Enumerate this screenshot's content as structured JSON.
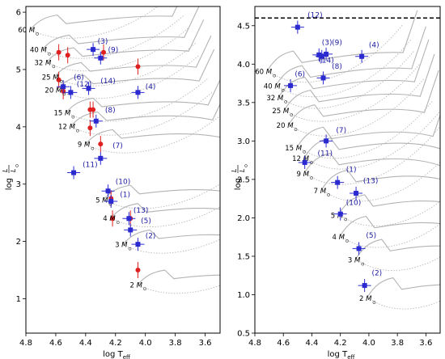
{
  "figure": {
    "description": "Two-panel Hertzsprung-Russell diagram with evolutionary tracks, observed stars and models"
  },
  "chart_data": [
    {
      "type": "scatter",
      "panel": "left",
      "xlabel": "log T",
      "xlabel_sub": "eff",
      "ylabel_num": "L",
      "ylabel_den": "L",
      "ylabel_prefix": "log",
      "xlim": [
        4.8,
        3.5
      ],
      "ylim": [
        0.4,
        6.1
      ],
      "xticks": [
        {
          "value": 4.8,
          "label": "4.8"
        },
        {
          "value": 4.6,
          "label": "4.6"
        },
        {
          "value": 4.4,
          "label": "4.4"
        },
        {
          "value": 4.2,
          "label": "4.2"
        },
        {
          "value": 4.0,
          "label": "4.0"
        },
        {
          "value": 3.8,
          "label": "3.8"
        },
        {
          "value": 3.6,
          "label": "3.6"
        }
      ],
      "yticks": [
        {
          "value": 1,
          "label": "1"
        },
        {
          "value": 2,
          "label": "2"
        },
        {
          "value": 3,
          "label": "3"
        },
        {
          "value": 4,
          "label": "4"
        },
        {
          "value": 5,
          "label": "5"
        },
        {
          "value": 6,
          "label": "6"
        }
      ],
      "mass_labels": [
        {
          "text": "60",
          "x": 4.74,
          "y": 5.65
        },
        {
          "text": "40",
          "x": 4.66,
          "y": 5.3
        },
        {
          "text": "32",
          "x": 4.63,
          "y": 5.08
        },
        {
          "text": "25",
          "x": 4.58,
          "y": 4.82
        },
        {
          "text": "20",
          "x": 4.56,
          "y": 4.6
        },
        {
          "text": "15",
          "x": 4.5,
          "y": 4.2
        },
        {
          "text": "12",
          "x": 4.47,
          "y": 3.96
        },
        {
          "text": "9",
          "x": 4.37,
          "y": 3.65
        },
        {
          "text": "5",
          "x": 4.25,
          "y": 2.68
        },
        {
          "text": "4",
          "x": 4.2,
          "y": 2.36
        },
        {
          "text": "3",
          "x": 4.12,
          "y": 1.9
        },
        {
          "text": "2",
          "x": 4.02,
          "y": 1.2
        }
      ],
      "model_stars": [
        {
          "label": "(3)",
          "x": 4.35,
          "y": 5.35,
          "lx": 4.32,
          "ly": 5.45
        },
        {
          "label": "(9)",
          "x": 4.3,
          "y": 5.2,
          "lx": 4.25,
          "ly": 5.3
        },
        {
          "label": "(6)",
          "x": 4.55,
          "y": 4.7,
          "lx": 4.48,
          "ly": 4.82
        },
        {
          "label": "(12)",
          "x": 4.38,
          "y": 4.67,
          "lx": 4.46,
          "ly": 4.7
        },
        {
          "label": "(14)",
          "x": 4.5,
          "y": 4.6,
          "lx": 4.3,
          "ly": 4.76
        },
        {
          "label": "(4)",
          "x": 4.05,
          "y": 4.6,
          "lx": 4.0,
          "ly": 4.66
        },
        {
          "label": "(8)",
          "x": 4.33,
          "y": 4.1,
          "lx": 4.27,
          "ly": 4.25
        },
        {
          "label": "(7)",
          "x": 4.3,
          "y": 3.45,
          "lx": 4.22,
          "ly": 3.63
        },
        {
          "label": "(11)",
          "x": 4.48,
          "y": 3.2,
          "lx": 4.42,
          "ly": 3.3
        },
        {
          "label": "(10)",
          "x": 4.25,
          "y": 2.88,
          "lx": 4.2,
          "ly": 3.0
        },
        {
          "label": "(1)",
          "x": 4.23,
          "y": 2.7,
          "lx": 4.17,
          "ly": 2.78
        },
        {
          "label": "(13)",
          "x": 4.11,
          "y": 2.4,
          "lx": 4.08,
          "ly": 2.5
        },
        {
          "label": "(5)",
          "x": 4.1,
          "y": 2.2,
          "lx": 4.03,
          "ly": 2.32
        },
        {
          "label": "(2)",
          "x": 4.05,
          "y": 1.95,
          "lx": 4.0,
          "ly": 2.06
        }
      ],
      "observed_stars": [
        {
          "x": 4.58,
          "y": 5.3
        },
        {
          "x": 4.52,
          "y": 5.25
        },
        {
          "x": 4.28,
          "y": 5.3
        },
        {
          "x": 4.58,
          "y": 4.82
        },
        {
          "x": 4.05,
          "y": 5.05
        },
        {
          "x": 4.55,
          "y": 4.62
        },
        {
          "x": 4.37,
          "y": 4.3
        },
        {
          "x": 4.35,
          "y": 4.3
        },
        {
          "x": 4.37,
          "y": 3.98
        },
        {
          "x": 4.3,
          "y": 3.7
        },
        {
          "x": 4.23,
          "y": 2.75
        },
        {
          "x": 4.22,
          "y": 2.4
        },
        {
          "x": 4.1,
          "y": 2.4
        },
        {
          "x": 4.05,
          "y": 1.5
        }
      ]
    },
    {
      "type": "scatter",
      "panel": "right",
      "xlabel": "log T",
      "xlabel_sub": "eff",
      "ylabel_num": "L",
      "ylabel_den": "L",
      "ylabel_prefix": "log",
      "xlim": [
        4.8,
        3.5
      ],
      "ylim": [
        0.5,
        4.75
      ],
      "eddington_limit": 4.6,
      "xticks": [
        {
          "value": 4.8,
          "label": "4.8"
        },
        {
          "value": 4.6,
          "label": "4.6"
        },
        {
          "value": 4.4,
          "label": "4.4"
        },
        {
          "value": 4.2,
          "label": "4.2"
        },
        {
          "value": 4.0,
          "label": "4.0"
        },
        {
          "value": 3.8,
          "label": "3.8"
        },
        {
          "value": 3.6,
          "label": "3.6"
        }
      ],
      "yticks": [
        {
          "value": 0.5,
          "label": "0.5"
        },
        {
          "value": 1.0,
          "label": "1.0"
        },
        {
          "value": 1.5,
          "label": "1.5"
        },
        {
          "value": 2.0,
          "label": "2.0"
        },
        {
          "value": 2.5,
          "label": "2.5"
        },
        {
          "value": 3.0,
          "label": "3.0"
        },
        {
          "value": 3.5,
          "label": "3.5"
        },
        {
          "value": 4.0,
          "label": "4.0"
        },
        {
          "value": 4.5,
          "label": "4.5"
        }
      ],
      "mass_labels": [
        {
          "text": "60",
          "x": 4.68,
          "y": 3.87
        },
        {
          "text": "40",
          "x": 4.62,
          "y": 3.68
        },
        {
          "text": "32",
          "x": 4.6,
          "y": 3.53
        },
        {
          "text": "25",
          "x": 4.56,
          "y": 3.36
        },
        {
          "text": "20",
          "x": 4.53,
          "y": 3.17
        },
        {
          "text": "15",
          "x": 4.47,
          "y": 2.88
        },
        {
          "text": "12",
          "x": 4.42,
          "y": 2.74
        },
        {
          "text": "9",
          "x": 4.42,
          "y": 2.54
        },
        {
          "text": "7",
          "x": 4.3,
          "y": 2.32
        },
        {
          "text": "5",
          "x": 4.18,
          "y": 2.0
        },
        {
          "text": "4",
          "x": 4.17,
          "y": 1.72
        },
        {
          "text": "3",
          "x": 4.06,
          "y": 1.42
        },
        {
          "text": "2",
          "x": 3.98,
          "y": 0.92
        }
      ],
      "model_stars": [
        {
          "label": "(12)",
          "x": 4.5,
          "y": 4.48,
          "lx": 4.43,
          "ly": 4.61
        },
        {
          "label": "(3)",
          "x": 4.35,
          "y": 4.12,
          "lx": 4.33,
          "ly": 4.25
        },
        {
          "label": "(9)",
          "x": 4.3,
          "y": 4.13,
          "lx": 4.26,
          "ly": 4.25
        },
        {
          "label": "(14)",
          "x": 4.33,
          "y": 4.1,
          "lx": 4.35,
          "ly": 4.02
        },
        {
          "label": "(4)",
          "x": 4.05,
          "y": 4.1,
          "lx": 4.0,
          "ly": 4.22
        },
        {
          "label": "(8)",
          "x": 4.32,
          "y": 3.82,
          "lx": 4.26,
          "ly": 3.94
        },
        {
          "label": "(6)",
          "x": 4.55,
          "y": 3.72,
          "lx": 4.52,
          "ly": 3.84
        },
        {
          "label": "(7)",
          "x": 4.3,
          "y": 3.0,
          "lx": 4.23,
          "ly": 3.11
        },
        {
          "label": "(11)",
          "x": 4.45,
          "y": 2.72,
          "lx": 4.36,
          "ly": 2.81
        },
        {
          "label": "(1)",
          "x": 4.22,
          "y": 2.46,
          "lx": 4.16,
          "ly": 2.6
        },
        {
          "label": "(13)",
          "x": 4.09,
          "y": 2.32,
          "lx": 4.04,
          "ly": 2.45
        },
        {
          "label": "(10)",
          "x": 4.2,
          "y": 2.05,
          "lx": 4.16,
          "ly": 2.17
        },
        {
          "label": "(5)",
          "x": 4.07,
          "y": 1.6,
          "lx": 4.02,
          "ly": 1.74
        },
        {
          "label": "(2)",
          "x": 4.03,
          "y": 1.12,
          "lx": 3.98,
          "ly": 1.25
        }
      ]
    }
  ]
}
